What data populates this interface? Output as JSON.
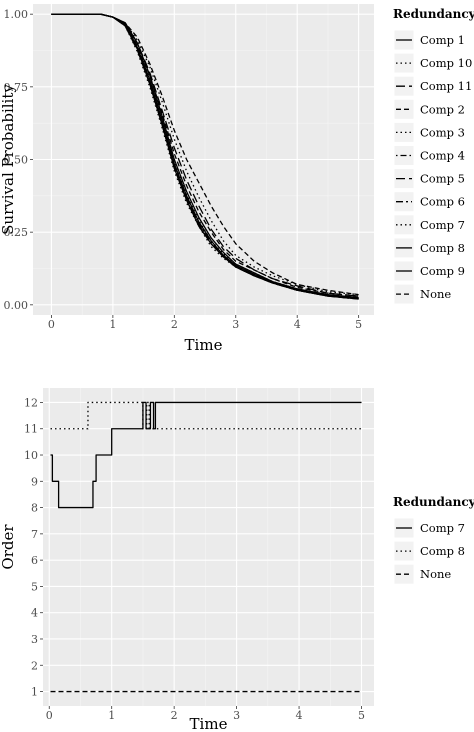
{
  "chart_data": [
    {
      "type": "line",
      "xlabel": "Time",
      "ylabel": "Survival Probability",
      "xlim": [
        -0.3,
        5.25
      ],
      "ylim": [
        -0.035,
        1.035
      ],
      "x_ticks": [
        "0",
        "1",
        "2",
        "3",
        "4",
        "5"
      ],
      "y_ticks": [
        "0.00",
        "0.25",
        "0.50",
        "0.75",
        "1.00"
      ],
      "grid": true,
      "legend_title": "Redundancy",
      "legend_position": "right",
      "series": [
        {
          "name": "Comp 1",
          "dash": "solid",
          "points": [
            [
              0,
              1.0
            ],
            [
              0.8,
              1.0
            ],
            [
              1.0,
              0.99
            ],
            [
              1.2,
              0.96
            ],
            [
              1.4,
              0.88
            ],
            [
              1.6,
              0.76
            ],
            [
              1.8,
              0.62
            ],
            [
              2.0,
              0.47
            ],
            [
              2.2,
              0.36
            ],
            [
              2.4,
              0.27
            ],
            [
              2.6,
              0.21
            ],
            [
              2.8,
              0.165
            ],
            [
              3.0,
              0.13
            ],
            [
              3.3,
              0.1
            ],
            [
              3.6,
              0.075
            ],
            [
              4.0,
              0.05
            ],
            [
              4.5,
              0.03
            ],
            [
              5.0,
              0.02
            ]
          ]
        },
        {
          "name": "Comp 10",
          "dash": "dot",
          "points": [
            [
              0,
              1.0
            ],
            [
              0.8,
              1.0
            ],
            [
              1.0,
              0.99
            ],
            [
              1.2,
              0.965
            ],
            [
              1.4,
              0.89
            ],
            [
              1.6,
              0.78
            ],
            [
              1.8,
              0.64
            ],
            [
              2.0,
              0.49
            ],
            [
              2.2,
              0.38
            ],
            [
              2.4,
              0.29
            ],
            [
              2.6,
              0.22
            ],
            [
              2.8,
              0.175
            ],
            [
              3.0,
              0.14
            ],
            [
              3.3,
              0.11
            ],
            [
              3.6,
              0.08
            ],
            [
              4.0,
              0.055
            ],
            [
              4.5,
              0.035
            ],
            [
              5.0,
              0.025
            ]
          ]
        },
        {
          "name": "Comp 11",
          "dash": "longdash",
          "points": [
            [
              0,
              1.0
            ],
            [
              0.8,
              1.0
            ],
            [
              1.0,
              0.99
            ],
            [
              1.2,
              0.97
            ],
            [
              1.4,
              0.9
            ],
            [
              1.6,
              0.8
            ],
            [
              1.8,
              0.67
            ],
            [
              2.0,
              0.54
            ],
            [
              2.2,
              0.43
            ],
            [
              2.4,
              0.34
            ],
            [
              2.6,
              0.26
            ],
            [
              2.8,
              0.2
            ],
            [
              3.0,
              0.16
            ],
            [
              3.3,
              0.12
            ],
            [
              3.6,
              0.09
            ],
            [
              4.0,
              0.065
            ],
            [
              4.5,
              0.04
            ],
            [
              5.0,
              0.03
            ]
          ]
        },
        {
          "name": "Comp 2",
          "dash": "dash",
          "points": [
            [
              0,
              1.0
            ],
            [
              0.8,
              1.0
            ],
            [
              1.0,
              0.99
            ],
            [
              1.2,
              0.97
            ],
            [
              1.4,
              0.92
            ],
            [
              1.6,
              0.83
            ],
            [
              1.8,
              0.72
            ],
            [
              2.0,
              0.6
            ],
            [
              2.2,
              0.5
            ],
            [
              2.4,
              0.42
            ],
            [
              2.6,
              0.34
            ],
            [
              2.8,
              0.27
            ],
            [
              3.0,
              0.21
            ],
            [
              3.3,
              0.15
            ],
            [
              3.6,
              0.11
            ],
            [
              4.0,
              0.07
            ],
            [
              4.5,
              0.05
            ],
            [
              5.0,
              0.035
            ]
          ]
        },
        {
          "name": "Comp 3",
          "dash": "dot",
          "points": [
            [
              0,
              1.0
            ],
            [
              0.8,
              1.0
            ],
            [
              1.0,
              0.99
            ],
            [
              1.2,
              0.96
            ],
            [
              1.4,
              0.87
            ],
            [
              1.6,
              0.75
            ],
            [
              1.8,
              0.61
            ],
            [
              2.0,
              0.46
            ],
            [
              2.2,
              0.35
            ],
            [
              2.4,
              0.27
            ],
            [
              2.6,
              0.2
            ],
            [
              2.8,
              0.16
            ],
            [
              3.0,
              0.13
            ],
            [
              3.3,
              0.1
            ],
            [
              3.6,
              0.075
            ],
            [
              4.0,
              0.05
            ],
            [
              4.5,
              0.03
            ],
            [
              5.0,
              0.02
            ]
          ]
        },
        {
          "name": "Comp 4",
          "dash": "dotdash",
          "points": [
            [
              0,
              1.0
            ],
            [
              0.8,
              1.0
            ],
            [
              1.0,
              0.99
            ],
            [
              1.2,
              0.965
            ],
            [
              1.4,
              0.88
            ],
            [
              1.6,
              0.77
            ],
            [
              1.8,
              0.63
            ],
            [
              2.0,
              0.48
            ],
            [
              2.2,
              0.37
            ],
            [
              2.4,
              0.28
            ],
            [
              2.6,
              0.21
            ],
            [
              2.8,
              0.17
            ],
            [
              3.0,
              0.135
            ],
            [
              3.3,
              0.105
            ],
            [
              3.6,
              0.078
            ],
            [
              4.0,
              0.052
            ],
            [
              4.5,
              0.032
            ],
            [
              5.0,
              0.022
            ]
          ]
        },
        {
          "name": "Comp 5",
          "dash": "longdash",
          "points": [
            [
              0,
              1.0
            ],
            [
              0.8,
              1.0
            ],
            [
              1.0,
              0.99
            ],
            [
              1.2,
              0.96
            ],
            [
              1.4,
              0.875
            ],
            [
              1.6,
              0.76
            ],
            [
              1.8,
              0.62
            ],
            [
              2.0,
              0.47
            ],
            [
              2.2,
              0.36
            ],
            [
              2.4,
              0.275
            ],
            [
              2.6,
              0.21
            ],
            [
              2.8,
              0.165
            ],
            [
              3.0,
              0.13
            ],
            [
              3.3,
              0.1
            ],
            [
              3.6,
              0.075
            ],
            [
              4.0,
              0.05
            ],
            [
              4.5,
              0.03
            ],
            [
              5.0,
              0.02
            ]
          ]
        },
        {
          "name": "Comp 6",
          "dash": "twodash",
          "points": [
            [
              0,
              1.0
            ],
            [
              0.8,
              1.0
            ],
            [
              1.0,
              0.99
            ],
            [
              1.2,
              0.96
            ],
            [
              1.4,
              0.88
            ],
            [
              1.6,
              0.77
            ],
            [
              1.8,
              0.625
            ],
            [
              2.0,
              0.475
            ],
            [
              2.2,
              0.365
            ],
            [
              2.4,
              0.28
            ],
            [
              2.6,
              0.215
            ],
            [
              2.8,
              0.17
            ],
            [
              3.0,
              0.135
            ],
            [
              3.3,
              0.1
            ],
            [
              3.6,
              0.076
            ],
            [
              4.0,
              0.05
            ],
            [
              4.5,
              0.031
            ],
            [
              5.0,
              0.021
            ]
          ]
        },
        {
          "name": "Comp 7",
          "dash": "dot",
          "points": [
            [
              0,
              1.0
            ],
            [
              0.8,
              1.0
            ],
            [
              1.0,
              0.99
            ],
            [
              1.2,
              0.97
            ],
            [
              1.4,
              0.91
            ],
            [
              1.6,
              0.82
            ],
            [
              1.8,
              0.7
            ],
            [
              2.0,
              0.57
            ],
            [
              2.2,
              0.46
            ],
            [
              2.4,
              0.37
            ],
            [
              2.6,
              0.29
            ],
            [
              2.8,
              0.22
            ],
            [
              3.0,
              0.17
            ],
            [
              3.3,
              0.13
            ],
            [
              3.6,
              0.1
            ],
            [
              4.0,
              0.07
            ],
            [
              4.5,
              0.045
            ],
            [
              5.0,
              0.035
            ]
          ]
        },
        {
          "name": "Comp 8",
          "dash": "solid",
          "points": [
            [
              0,
              1.0
            ],
            [
              0.8,
              1.0
            ],
            [
              1.0,
              0.99
            ],
            [
              1.2,
              0.965
            ],
            [
              1.4,
              0.885
            ],
            [
              1.6,
              0.775
            ],
            [
              1.8,
              0.635
            ],
            [
              2.0,
              0.485
            ],
            [
              2.2,
              0.375
            ],
            [
              2.4,
              0.285
            ],
            [
              2.6,
              0.22
            ],
            [
              2.8,
              0.17
            ],
            [
              3.0,
              0.135
            ],
            [
              3.3,
              0.105
            ],
            [
              3.6,
              0.078
            ],
            [
              4.0,
              0.052
            ],
            [
              4.5,
              0.032
            ],
            [
              5.0,
              0.022
            ]
          ]
        },
        {
          "name": "Comp 9",
          "dash": "solid",
          "points": [
            [
              0,
              1.0
            ],
            [
              0.8,
              1.0
            ],
            [
              1.0,
              0.99
            ],
            [
              1.2,
              0.97
            ],
            [
              1.4,
              0.9
            ],
            [
              1.6,
              0.79
            ],
            [
              1.8,
              0.65
            ],
            [
              2.0,
              0.5
            ],
            [
              2.2,
              0.39
            ],
            [
              2.4,
              0.3
            ],
            [
              2.6,
              0.23
            ],
            [
              2.8,
              0.18
            ],
            [
              3.0,
              0.14
            ],
            [
              3.3,
              0.11
            ],
            [
              3.6,
              0.08
            ],
            [
              4.0,
              0.055
            ],
            [
              4.5,
              0.035
            ],
            [
              5.0,
              0.025
            ]
          ]
        },
        {
          "name": "None",
          "dash": "dash",
          "points": [
            [
              0,
              1.0
            ],
            [
              0.8,
              1.0
            ],
            [
              1.0,
              0.99
            ],
            [
              1.2,
              0.97
            ],
            [
              1.4,
              0.89
            ],
            [
              1.6,
              0.79
            ],
            [
              1.8,
              0.66
            ],
            [
              2.0,
              0.52
            ],
            [
              2.2,
              0.41
            ],
            [
              2.4,
              0.32
            ],
            [
              2.6,
              0.25
            ],
            [
              2.8,
              0.19
            ],
            [
              3.0,
              0.15
            ],
            [
              3.3,
              0.12
            ],
            [
              3.6,
              0.09
            ],
            [
              4.0,
              0.06
            ],
            [
              4.5,
              0.04
            ],
            [
              5.0,
              0.03
            ]
          ]
        }
      ]
    },
    {
      "type": "line",
      "xlabel": "Time",
      "ylabel": "Order",
      "xlim": [
        -0.1,
        5.2
      ],
      "ylim": [
        0.45,
        12.55
      ],
      "x_ticks": [
        "0",
        "1",
        "2",
        "3",
        "4",
        "5"
      ],
      "y_ticks": [
        "1",
        "2",
        "3",
        "4",
        "5",
        "6",
        "7",
        "8",
        "9",
        "10",
        "11",
        "12"
      ],
      "grid": true,
      "legend_title": "Redundancy",
      "legend_position": "right",
      "series": [
        {
          "name": "Comp 7",
          "dash": "solid",
          "step": true,
          "points": [
            [
              0.02,
              10
            ],
            [
              0.05,
              9
            ],
            [
              0.15,
              8
            ],
            [
              0.7,
              9
            ],
            [
              0.75,
              10
            ],
            [
              1.0,
              11
            ],
            [
              1.5,
              12
            ],
            [
              1.55,
              11
            ],
            [
              1.62,
              12
            ],
            [
              1.67,
              11
            ],
            [
              1.7,
              12
            ],
            [
              5.0,
              12
            ]
          ]
        },
        {
          "name": "Comp 8",
          "dash": "dot",
          "step": true,
          "points": [
            [
              0.02,
              11
            ],
            [
              0.62,
              12
            ],
            [
              1.5,
              11
            ],
            [
              1.56,
              12
            ],
            [
              1.6,
              11
            ],
            [
              5.0,
              11
            ]
          ]
        },
        {
          "name": "None",
          "dash": "dash",
          "step": true,
          "points": [
            [
              0.02,
              1
            ],
            [
              5.0,
              1
            ]
          ]
        }
      ]
    }
  ]
}
